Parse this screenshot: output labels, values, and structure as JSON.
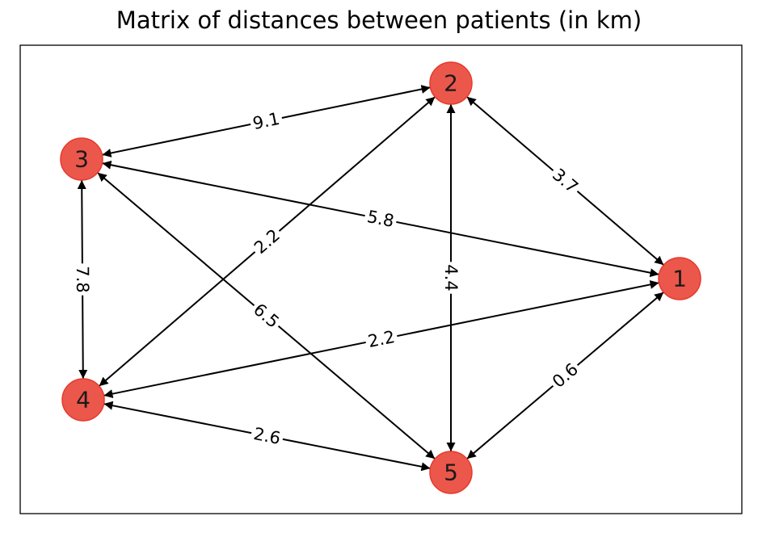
{
  "title": "Matrix of distances between patients (in km)",
  "colors": {
    "node_fill": "#e8392c",
    "node_stroke": "#e8392c",
    "edge": "#000000",
    "frame": "#000000",
    "background": "#ffffff"
  },
  "nodes": [
    {
      "id": "1",
      "label": "1"
    },
    {
      "id": "2",
      "label": "2"
    },
    {
      "id": "3",
      "label": "3"
    },
    {
      "id": "4",
      "label": "4"
    },
    {
      "id": "5",
      "label": "5"
    }
  ],
  "edges": [
    {
      "a": "2",
      "b": "3",
      "label": "9.1"
    },
    {
      "a": "2",
      "b": "1",
      "label": "3.7"
    },
    {
      "a": "3",
      "b": "1",
      "label": "5.8"
    },
    {
      "a": "3",
      "b": "4",
      "label": "7.8"
    },
    {
      "a": "2",
      "b": "4",
      "label": "2.2"
    },
    {
      "a": "2",
      "b": "5",
      "label": "4.4"
    },
    {
      "a": "3",
      "b": "5",
      "label": "6.5"
    },
    {
      "a": "4",
      "b": "1",
      "label": "2.2"
    },
    {
      "a": "5",
      "b": "1",
      "label": "0.6"
    },
    {
      "a": "4",
      "b": "5",
      "label": "2.6"
    }
  ]
}
